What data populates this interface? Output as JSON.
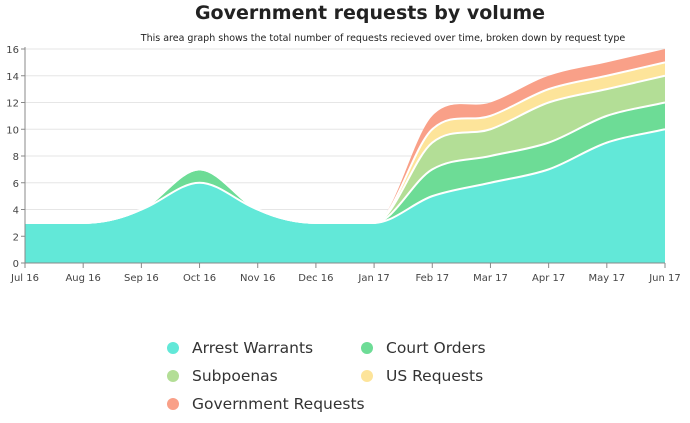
{
  "chart_data": {
    "type": "area",
    "stacked": true,
    "title": "Government requests by volume",
    "subtitle": "This area graph shows the total number of requests recieved over time, broken down by request type",
    "x": [
      "Jul 16",
      "Aug 16",
      "Sep 16",
      "Oct 16",
      "Nov 16",
      "Dec 16",
      "Jan 17",
      "Feb 17",
      "Mar 17",
      "Apr 17",
      "May 17",
      "Jun 17"
    ],
    "ylim": [
      0,
      16
    ],
    "yticks": [
      "0",
      "2",
      "4",
      "6",
      "8",
      "10",
      "12",
      "14",
      "16"
    ],
    "grid": true,
    "legend_position": "bottom",
    "series": [
      {
        "name": "Arrest Warrants",
        "color": "#62e8d8",
        "values": [
          3,
          3,
          4,
          6,
          4,
          3,
          3,
          5,
          6,
          7,
          9,
          10
        ]
      },
      {
        "name": "Court Orders",
        "color": "#6ddc96",
        "values": [
          0,
          0,
          0,
          1,
          0,
          0,
          0,
          2,
          2,
          2,
          2,
          2
        ]
      },
      {
        "name": "Subpoenas",
        "color": "#b3de96",
        "values": [
          0,
          0,
          0,
          0,
          0,
          0,
          0,
          2,
          2,
          3,
          2,
          2
        ]
      },
      {
        "name": "US Requests",
        "color": "#fde49a",
        "values": [
          0,
          0,
          0,
          0,
          0,
          0,
          0,
          1,
          1,
          1,
          1,
          1
        ]
      },
      {
        "name": "Government Requests",
        "color": "#f9a088",
        "values": [
          0,
          0,
          0,
          0,
          0,
          0,
          0,
          1,
          1,
          1,
          1,
          1
        ]
      }
    ]
  }
}
